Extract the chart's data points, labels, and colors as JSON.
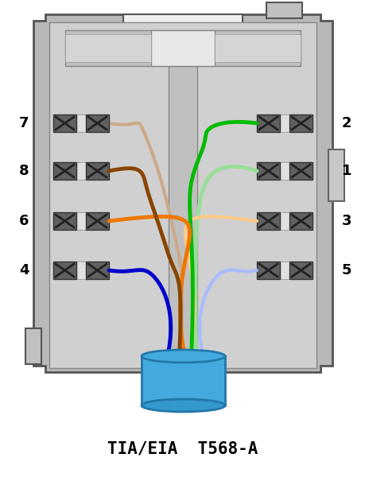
{
  "title": "TIA/EIA  T568-A",
  "bg_color": "#ffffff",
  "wire_colors": {
    "green": "#00bb00",
    "green_white": "#99dd99",
    "orange": "#ee7700",
    "orange_white": "#ffcc88",
    "blue": "#0000cc",
    "blue_white": "#aabbff",
    "brown": "#884400",
    "brown_white": "#ccaa88",
    "white": "#ffffff"
  },
  "jack_outer_color": "#b8b8b8",
  "jack_inner_color": "#d0d0d0",
  "jack_edge_color": "#555555",
  "idc_color": "#666666",
  "idc_edge": "#333333",
  "cable_color": "#44aadd",
  "cable_edge": "#2277aa"
}
